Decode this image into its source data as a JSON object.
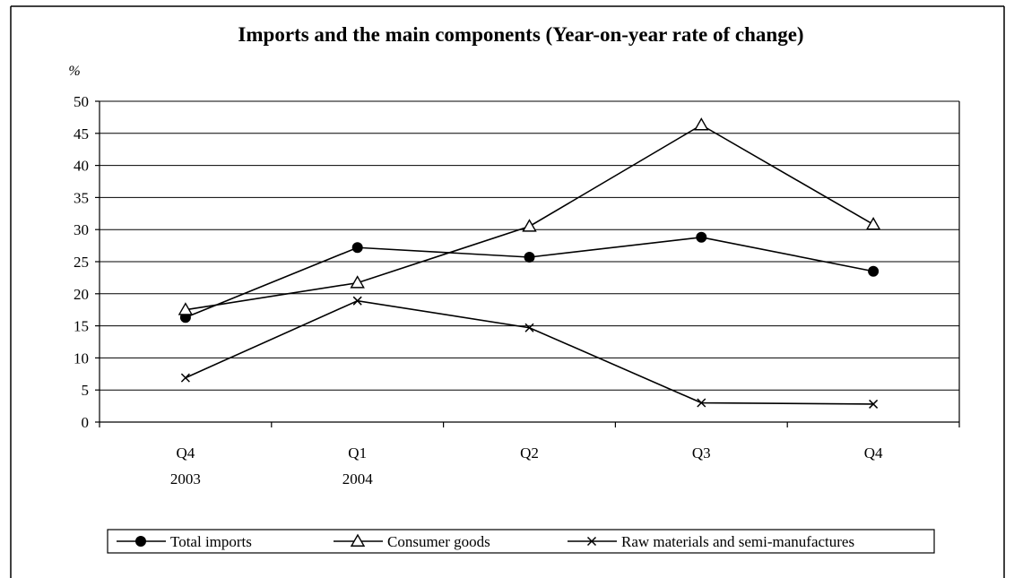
{
  "chart_data": {
    "type": "line",
    "title": "Imports and the main components (Year-on-year rate of change)",
    "unit_label": "%",
    "xlabel": "",
    "ylabel": "",
    "categories": [
      {
        "top": "Q4",
        "bottom": "2003"
      },
      {
        "top": "Q1",
        "bottom": "2004"
      },
      {
        "top": "Q2",
        "bottom": ""
      },
      {
        "top": "Q3",
        "bottom": ""
      },
      {
        "top": "Q4",
        "bottom": ""
      }
    ],
    "ylim": [
      0,
      50
    ],
    "yticks": [
      0,
      5,
      10,
      15,
      20,
      25,
      30,
      35,
      40,
      45,
      50
    ],
    "grid": true,
    "legend_position": "bottom",
    "series": [
      {
        "name": "Total imports",
        "marker": "filled-circle",
        "values": [
          16.3,
          27.2,
          25.7,
          28.8,
          23.5
        ]
      },
      {
        "name": "Consumer goods",
        "marker": "open-triangle",
        "values": [
          17.5,
          21.7,
          30.5,
          46.3,
          30.8
        ]
      },
      {
        "name": "Raw materials and semi-manufactures",
        "marker": "x-cross",
        "values": [
          6.9,
          18.9,
          14.7,
          3.0,
          2.8
        ]
      }
    ],
    "colors": {
      "line": "#000000",
      "background": "#ffffff"
    }
  }
}
